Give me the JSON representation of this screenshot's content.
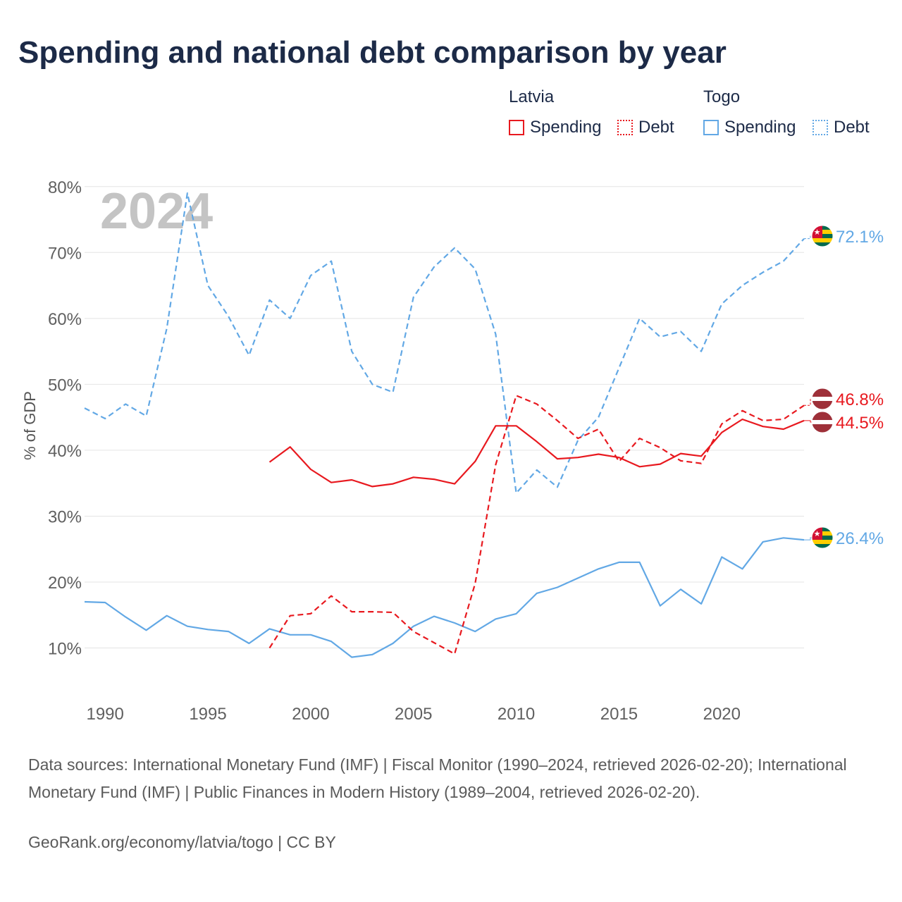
{
  "title": "Spending and national debt comparison by year",
  "legend": {
    "latvia_label": "Latvia",
    "togo_label": "Togo",
    "spending_label": "Spending",
    "debt_label": "Debt"
  },
  "colors": {
    "latvia": "#e8191f",
    "togo": "#62a8e5",
    "flag_latvia": "#9e3039",
    "flag_togo_green": "#006a4e",
    "flag_togo_yellow": "#ffce00",
    "flag_togo_red": "#d21034"
  },
  "year_watermark": "2024",
  "footer": {
    "sources": "Data sources: International Monetary Fund (IMF) | Fiscal Monitor (1990–2024, retrieved 2026-02-20); International Monetary Fund (IMF) | Public Finances in Modern History (1989–2004, retrieved 2026-02-20).",
    "link": "GeoRank.org/economy/latvia/togo | CC BY"
  },
  "chart_data": {
    "type": "line",
    "title": "Spending and national debt comparison by year",
    "xlabel": "",
    "ylabel": "% of GDP",
    "xlim": [
      1989,
      2024
    ],
    "ylim": [
      3,
      85
    ],
    "x_ticks": [
      1990,
      1995,
      2000,
      2005,
      2010,
      2015,
      2020
    ],
    "y_ticks": [
      10,
      20,
      30,
      40,
      50,
      60,
      70,
      80
    ],
    "y_tick_suffix": "%",
    "grid": true,
    "legend_position": "top-right",
    "series": [
      {
        "name": "Togo Debt",
        "country": "Togo",
        "measure": "Debt",
        "style": "dashed",
        "end_label": "72.1%",
        "points": [
          [
            1989,
            46.4
          ],
          [
            1990,
            44.8
          ],
          [
            1991,
            47.0
          ],
          [
            1992,
            45.2
          ],
          [
            1993,
            58.5
          ],
          [
            1994,
            79.0
          ],
          [
            1995,
            65.0
          ],
          [
            1996,
            60.3
          ],
          [
            1997,
            54.4
          ],
          [
            1998,
            62.8
          ],
          [
            1999,
            60.0
          ],
          [
            2000,
            66.5
          ],
          [
            2001,
            68.7
          ],
          [
            2002,
            55.0
          ],
          [
            2003,
            50.0
          ],
          [
            2004,
            48.8
          ],
          [
            2005,
            63.2
          ],
          [
            2006,
            67.8
          ],
          [
            2007,
            70.7
          ],
          [
            2008,
            67.5
          ],
          [
            2009,
            57.6
          ],
          [
            2010,
            33.5
          ],
          [
            2011,
            37.0
          ],
          [
            2012,
            34.4
          ],
          [
            2013,
            41.5
          ],
          [
            2014,
            45.0
          ],
          [
            2015,
            52.5
          ],
          [
            2016,
            60.0
          ],
          [
            2017,
            57.2
          ],
          [
            2018,
            58.0
          ],
          [
            2019,
            55.0
          ],
          [
            2020,
            62.2
          ],
          [
            2021,
            65.0
          ],
          [
            2022,
            67.0
          ],
          [
            2023,
            68.7
          ],
          [
            2024,
            72.1
          ]
        ]
      },
      {
        "name": "Togo Spending",
        "country": "Togo",
        "measure": "Spending",
        "style": "solid",
        "end_label": "26.4%",
        "points": [
          [
            1989,
            17.0
          ],
          [
            1990,
            16.9
          ],
          [
            1991,
            14.7
          ],
          [
            1992,
            12.7
          ],
          [
            1993,
            14.9
          ],
          [
            1994,
            13.3
          ],
          [
            1995,
            12.8
          ],
          [
            1996,
            12.5
          ],
          [
            1997,
            10.7
          ],
          [
            1998,
            12.9
          ],
          [
            1999,
            12.0
          ],
          [
            2000,
            12.0
          ],
          [
            2001,
            11.0
          ],
          [
            2002,
            8.6
          ],
          [
            2003,
            9.0
          ],
          [
            2004,
            10.7
          ],
          [
            2005,
            13.3
          ],
          [
            2006,
            14.8
          ],
          [
            2007,
            13.8
          ],
          [
            2008,
            12.5
          ],
          [
            2009,
            14.4
          ],
          [
            2010,
            15.2
          ],
          [
            2011,
            18.3
          ],
          [
            2012,
            19.2
          ],
          [
            2013,
            20.6
          ],
          [
            2014,
            22.0
          ],
          [
            2015,
            23.0
          ],
          [
            2016,
            23.0
          ],
          [
            2017,
            16.4
          ],
          [
            2018,
            18.9
          ],
          [
            2019,
            16.7
          ],
          [
            2020,
            23.8
          ],
          [
            2021,
            22.0
          ],
          [
            2022,
            26.1
          ],
          [
            2023,
            26.7
          ],
          [
            2024,
            26.4
          ]
        ]
      },
      {
        "name": "Latvia Debt",
        "country": "Latvia",
        "measure": "Debt",
        "style": "dashed",
        "end_label": "46.8%",
        "points": [
          [
            1998,
            10.0
          ],
          [
            1999,
            14.9
          ],
          [
            2000,
            15.2
          ],
          [
            2001,
            17.9
          ],
          [
            2002,
            15.5
          ],
          [
            2003,
            15.5
          ],
          [
            2004,
            15.4
          ],
          [
            2005,
            12.5
          ],
          [
            2006,
            10.8
          ],
          [
            2007,
            9.1
          ],
          [
            2008,
            19.8
          ],
          [
            2009,
            37.8
          ],
          [
            2010,
            48.3
          ],
          [
            2011,
            47.0
          ],
          [
            2012,
            44.5
          ],
          [
            2013,
            41.8
          ],
          [
            2014,
            43.2
          ],
          [
            2015,
            38.3
          ],
          [
            2016,
            41.8
          ],
          [
            2017,
            40.4
          ],
          [
            2018,
            38.4
          ],
          [
            2019,
            38.0
          ],
          [
            2020,
            44.0
          ],
          [
            2021,
            46.0
          ],
          [
            2022,
            44.5
          ],
          [
            2023,
            44.7
          ],
          [
            2024,
            46.8
          ]
        ]
      },
      {
        "name": "Latvia Spending",
        "country": "Latvia",
        "measure": "Spending",
        "style": "solid",
        "end_label": "44.5%",
        "points": [
          [
            1998,
            38.2
          ],
          [
            1999,
            40.5
          ],
          [
            2000,
            37.1
          ],
          [
            2001,
            35.1
          ],
          [
            2002,
            35.5
          ],
          [
            2003,
            34.5
          ],
          [
            2004,
            34.9
          ],
          [
            2005,
            35.9
          ],
          [
            2006,
            35.6
          ],
          [
            2007,
            34.9
          ],
          [
            2008,
            38.3
          ],
          [
            2009,
            43.7
          ],
          [
            2010,
            43.7
          ],
          [
            2011,
            41.3
          ],
          [
            2012,
            38.7
          ],
          [
            2013,
            38.9
          ],
          [
            2014,
            39.4
          ],
          [
            2015,
            38.9
          ],
          [
            2016,
            37.5
          ],
          [
            2017,
            37.9
          ],
          [
            2018,
            39.5
          ],
          [
            2019,
            39.1
          ],
          [
            2020,
            42.7
          ],
          [
            2021,
            44.7
          ],
          [
            2022,
            43.6
          ],
          [
            2023,
            43.2
          ],
          [
            2024,
            44.5
          ]
        ]
      }
    ]
  }
}
